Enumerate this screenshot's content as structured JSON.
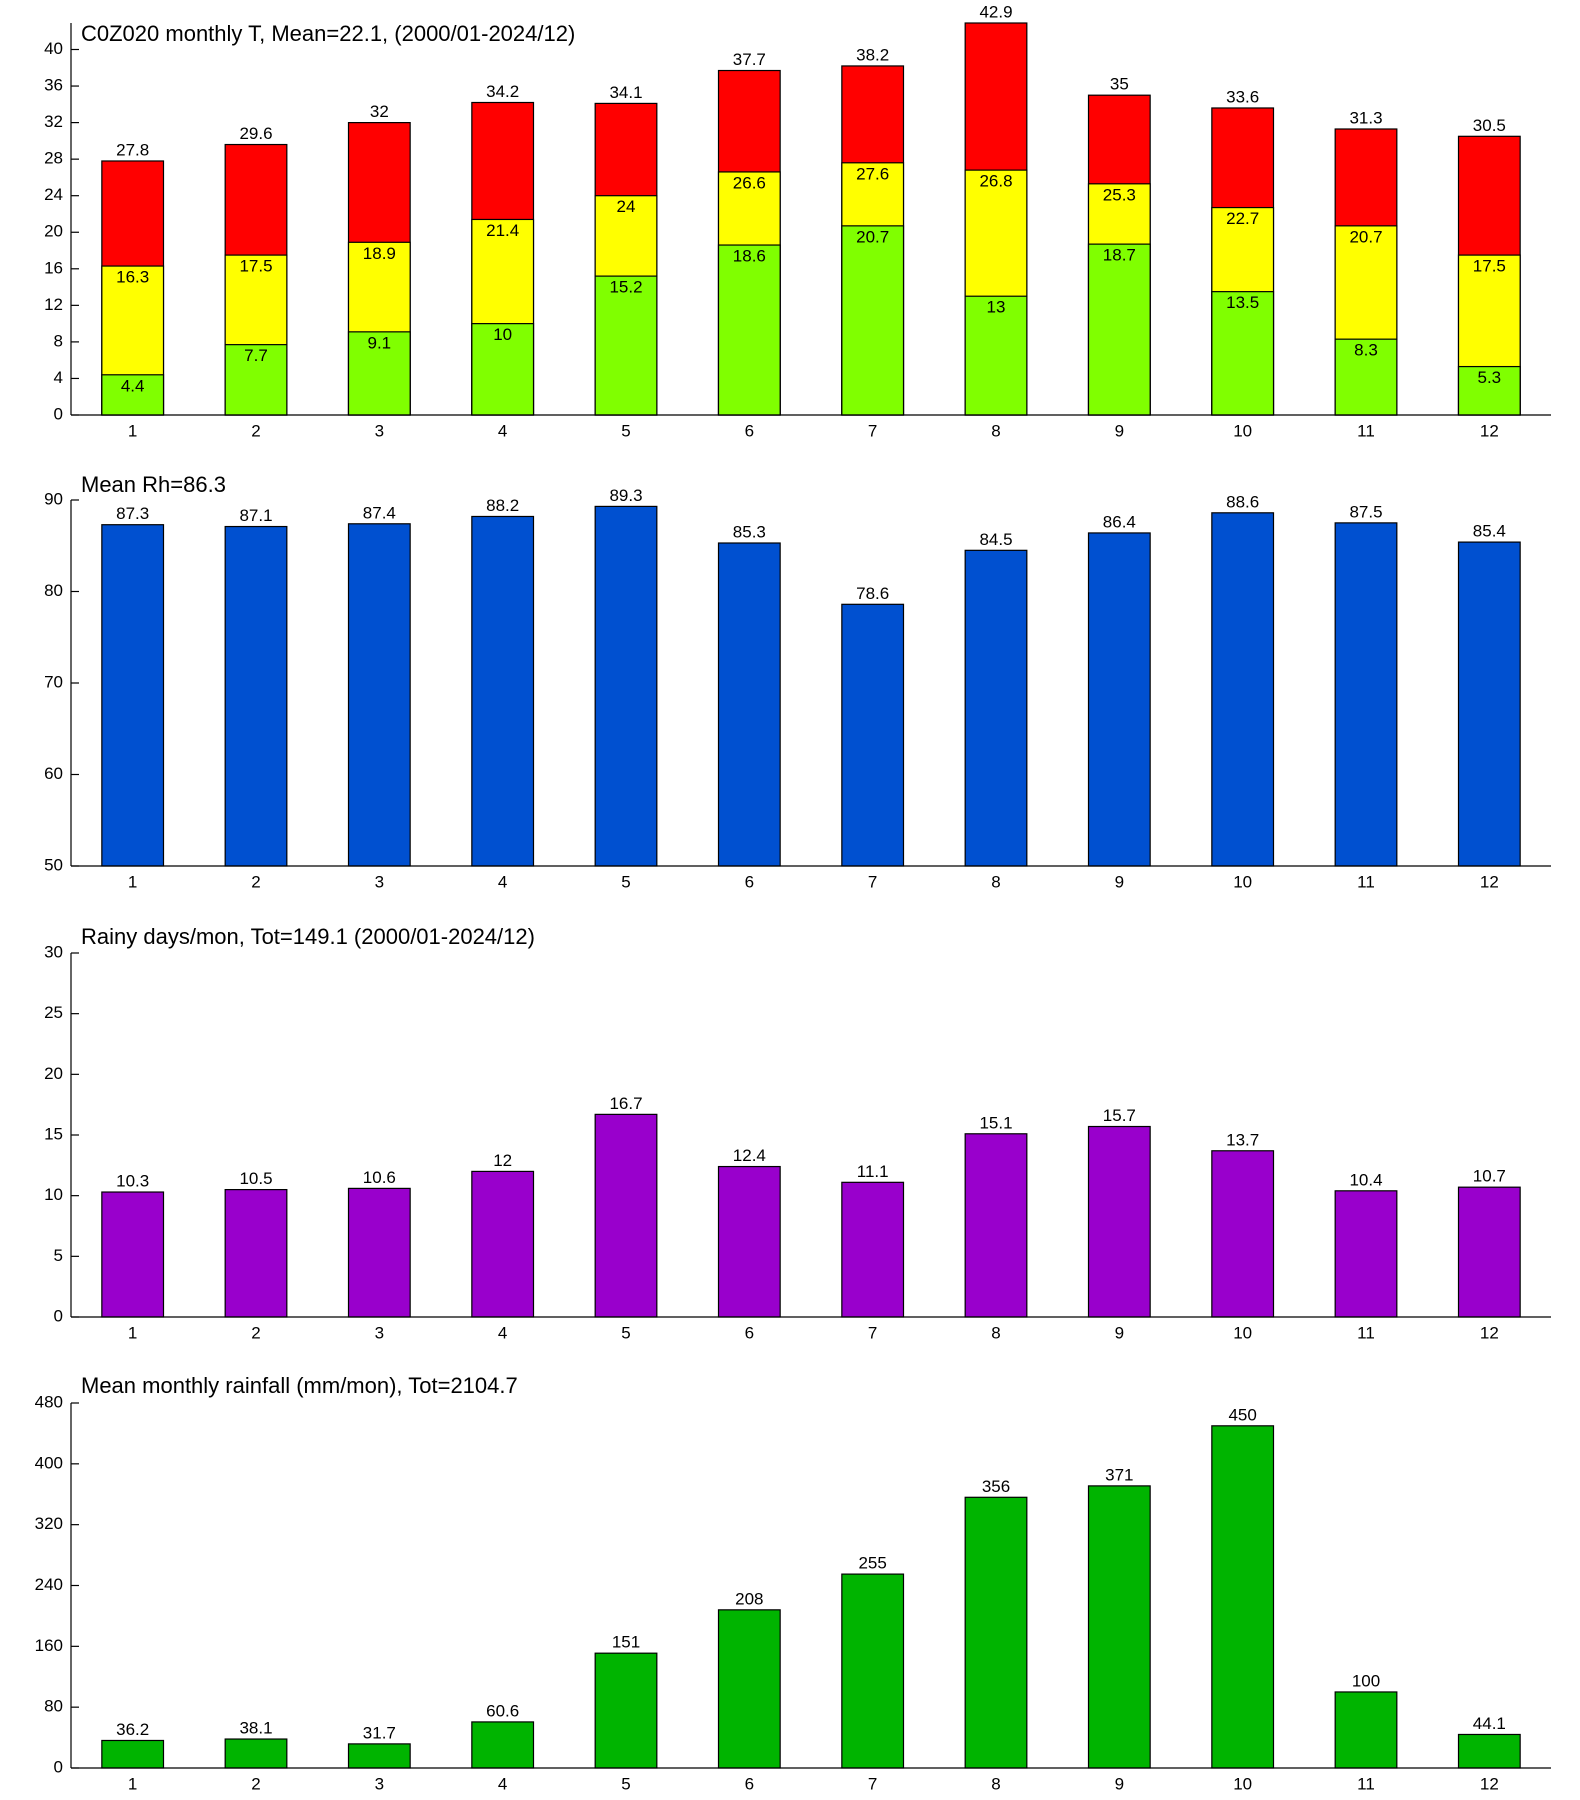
{
  "chart_data": [
    {
      "type": "overlay_bar",
      "title": "C0Z020 monthly T, Mean=22.1, (2000/01-2024/12)",
      "categories": [
        "1",
        "2",
        "3",
        "4",
        "5",
        "6",
        "7",
        "8",
        "9",
        "10",
        "11",
        "12"
      ],
      "series": [
        {
          "color": "#ff0000",
          "values": [
            27.8,
            29.6,
            32,
            34.2,
            34.1,
            37.7,
            38.2,
            42.9,
            35,
            33.6,
            31.3,
            30.5
          ]
        },
        {
          "color": "#ffff00",
          "values": [
            16.3,
            17.5,
            18.9,
            21.4,
            24,
            26.6,
            27.6,
            26.8,
            25.3,
            22.7,
            20.7,
            17.5
          ]
        },
        {
          "color": "#80ff00",
          "values": [
            4.4,
            7.7,
            9.1,
            10,
            15.2,
            18.6,
            20.7,
            13,
            18.7,
            13.5,
            8.3,
            5.3
          ]
        }
      ],
      "ylim": [
        0,
        42.9
      ],
      "yticks": [
        0,
        4,
        8,
        12,
        16,
        20,
        24,
        28,
        32,
        36,
        40
      ]
    },
    {
      "type": "bar",
      "title": "Mean Rh=86.3",
      "categories": [
        "1",
        "2",
        "3",
        "4",
        "5",
        "6",
        "7",
        "8",
        "9",
        "10",
        "11",
        "12"
      ],
      "values": [
        87.3,
        87.1,
        87.4,
        88.2,
        89.3,
        85.3,
        78.6,
        84.5,
        86.4,
        88.6,
        87.5,
        85.4
      ],
      "color": "#0050d0",
      "ylim": [
        50,
        90
      ],
      "yticks": [
        50,
        60,
        70,
        80,
        90
      ]
    },
    {
      "type": "bar",
      "title": "Rainy days/mon, Tot=149.1 (2000/01-2024/12)",
      "categories": [
        "1",
        "2",
        "3",
        "4",
        "5",
        "6",
        "7",
        "8",
        "9",
        "10",
        "11",
        "12"
      ],
      "values": [
        10.3,
        10.5,
        10.6,
        12,
        16.7,
        12.4,
        11.1,
        15.1,
        15.7,
        13.7,
        10.4,
        10.7
      ],
      "color": "#9900cc",
      "ylim": [
        0,
        30
      ],
      "yticks": [
        0,
        5,
        10,
        15,
        20,
        25,
        30
      ]
    },
    {
      "type": "bar",
      "title": "Mean monthly rainfall (mm/mon), Tot=2104.7",
      "categories": [
        "1",
        "2",
        "3",
        "4",
        "5",
        "6",
        "7",
        "8",
        "9",
        "10",
        "11",
        "12"
      ],
      "values": [
        36.2,
        38.1,
        31.7,
        60.6,
        151,
        208,
        255,
        356,
        371,
        450,
        100,
        44.1
      ],
      "color": "#00b400",
      "ylim": [
        0,
        480
      ],
      "yticks": [
        0,
        80,
        160,
        240,
        320,
        400,
        480
      ]
    }
  ]
}
